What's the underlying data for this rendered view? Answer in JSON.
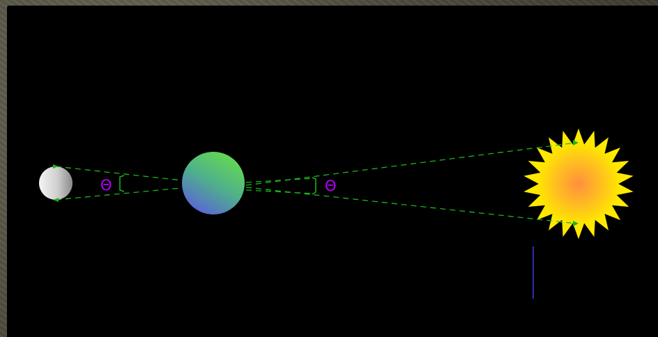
{
  "diagram": {
    "theta_symbol": "Θ",
    "colors": {
      "background": "#000000",
      "frame": "#55533f",
      "dashed_lines": "#1db51d",
      "theta": "#b400ff",
      "vertical_marker": "#3f3fe8",
      "sun_outer": "#ffe600",
      "sun_core": "#ff9a3c",
      "planet_green": "#5fd155",
      "planet_blue": "#5668d8",
      "moon_light": "#f2f2f2",
      "moon_dark": "#8e8e8e"
    },
    "objects": [
      "moon-sphere",
      "planet-sphere",
      "sun-star"
    ]
  }
}
